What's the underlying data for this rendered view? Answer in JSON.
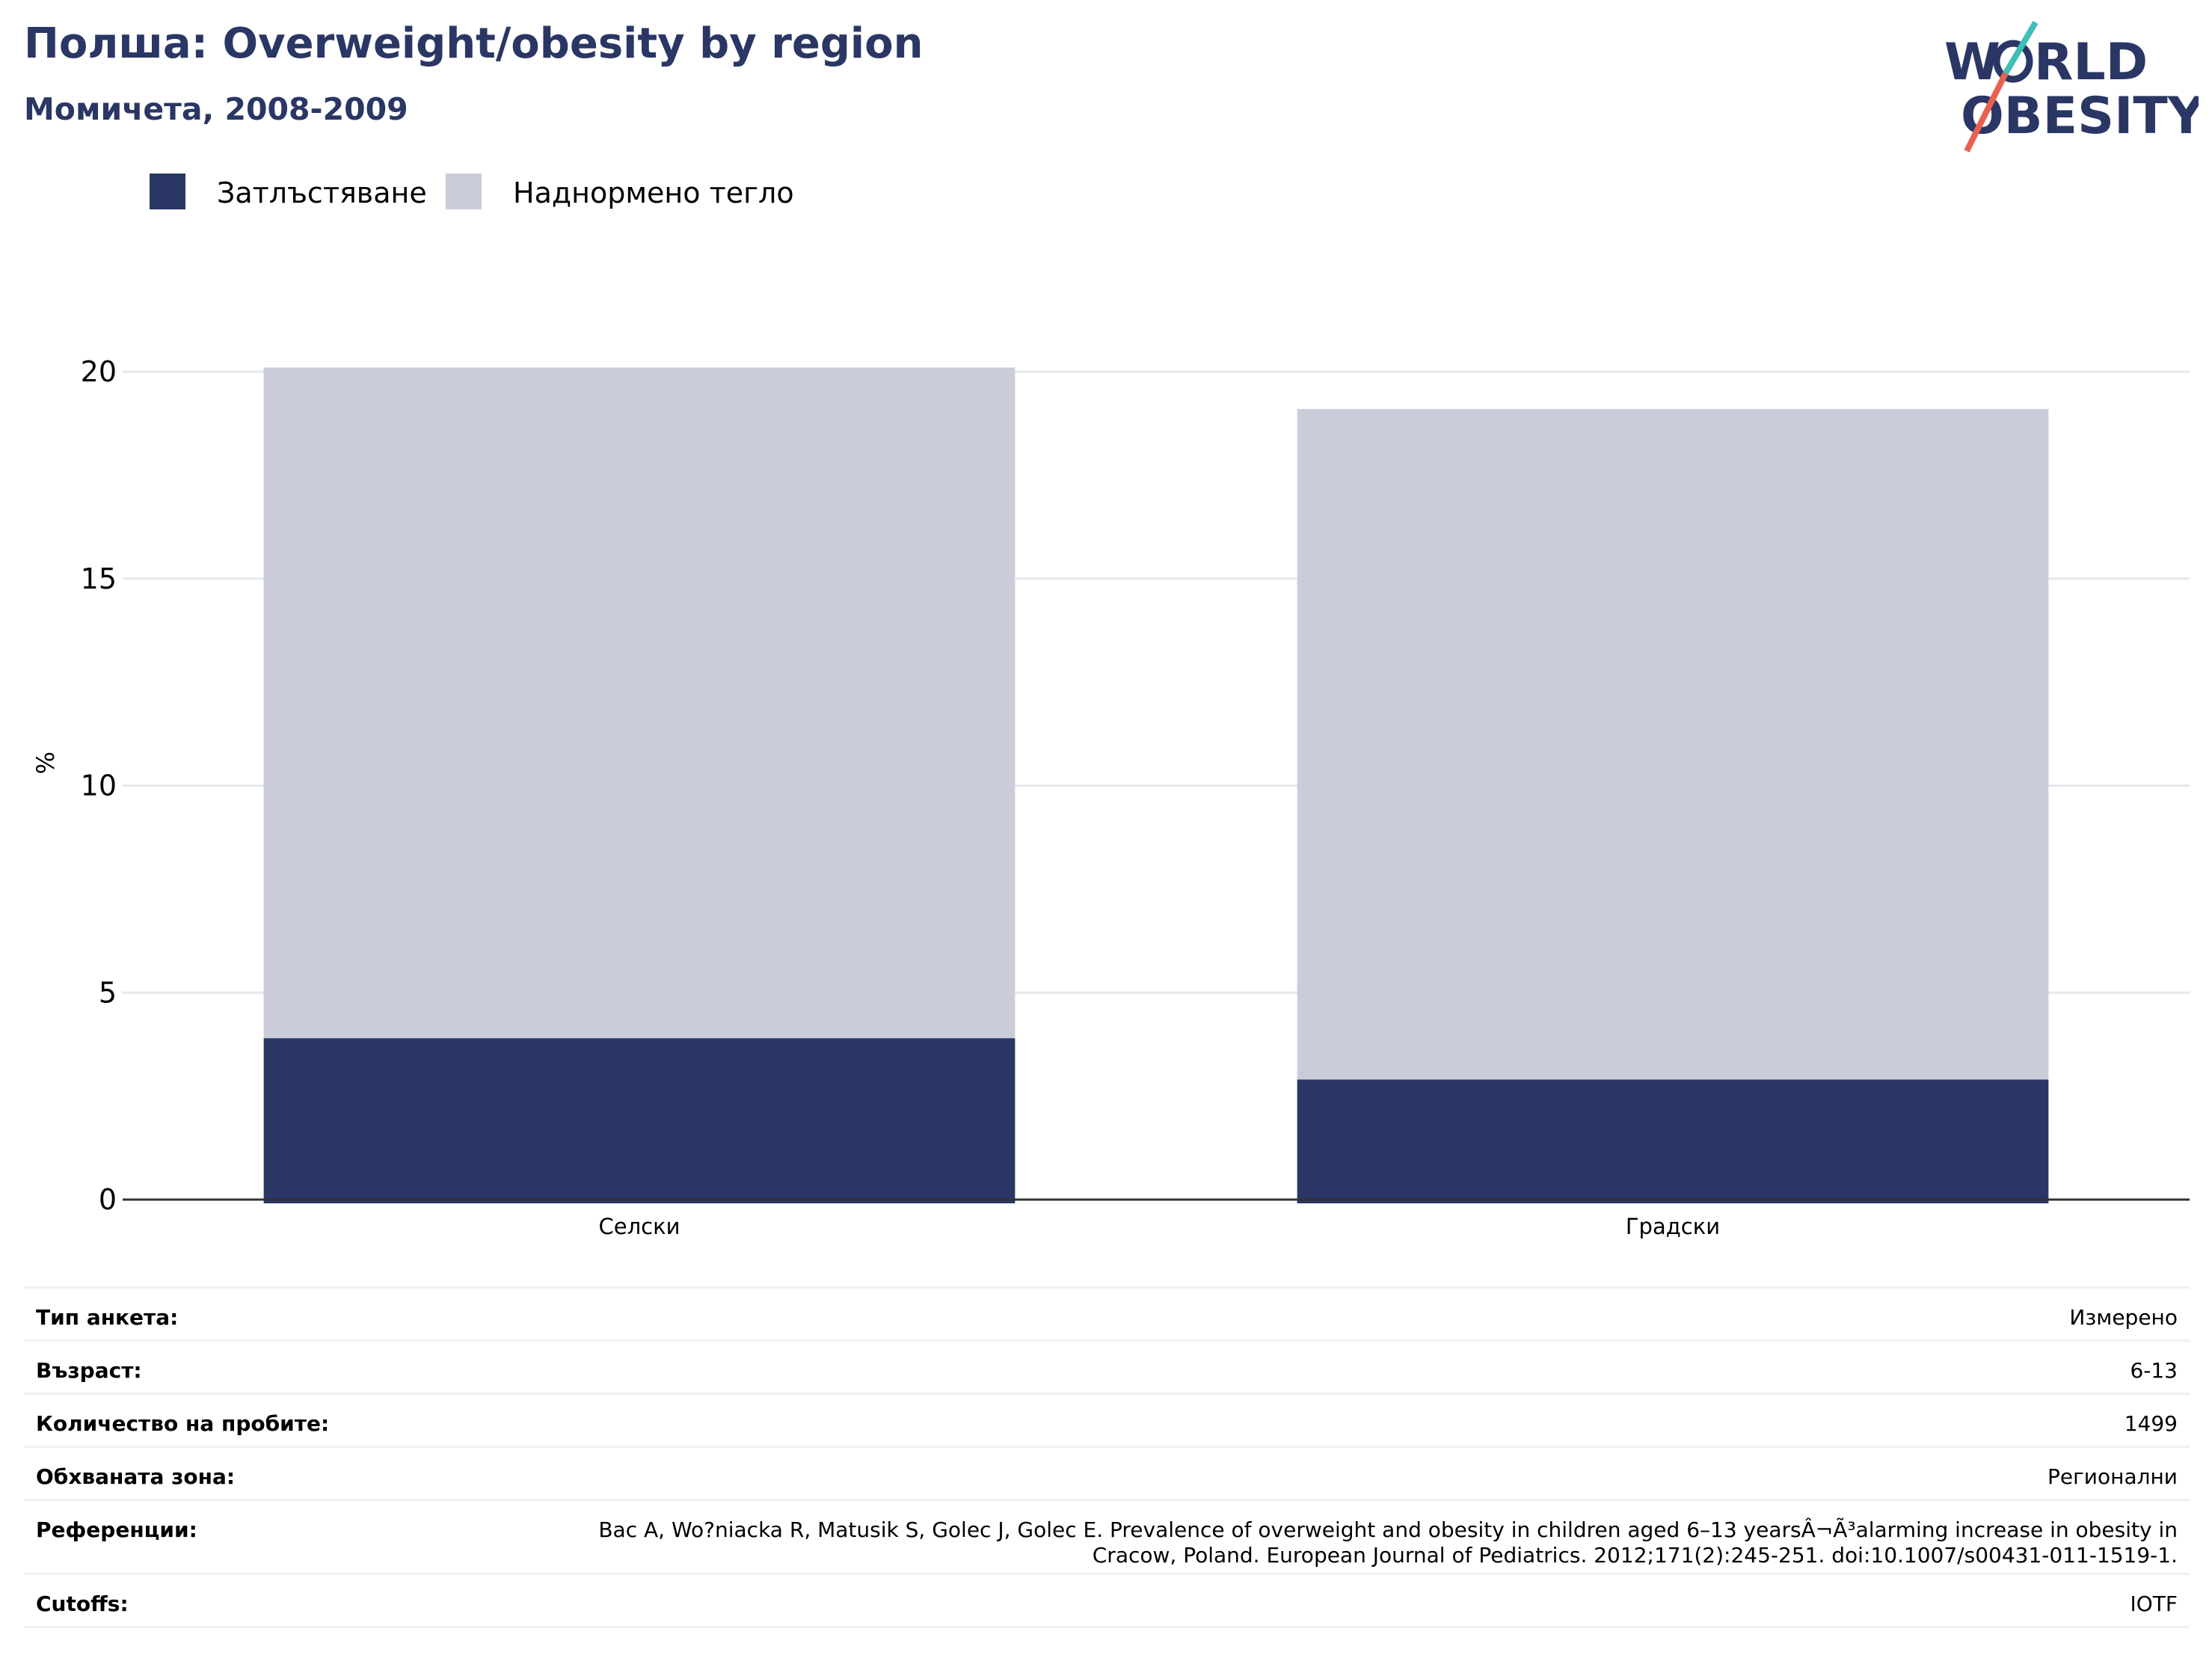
{
  "header": {
    "title": "Полша: Overweight/obesity by region",
    "subtitle": "Момичета, 2008-2009"
  },
  "logo": {
    "text_line1": "W",
    "text_line1b": "RLD",
    "text_line2": "OBESITY",
    "colors": {
      "navy": "#2a3765",
      "teal": "#3fbfb8",
      "coral": "#e8604f"
    }
  },
  "colors": {
    "obesity": "#2a3765",
    "overweight": "#cacdd9",
    "grid": "#e6e8ee",
    "axis": "#333333"
  },
  "chart_data": {
    "type": "bar",
    "stacked": true,
    "categories": [
      "Селски",
      "Градски"
    ],
    "series": [
      {
        "name": "Затлъстяване",
        "values": [
          3.9,
          2.9
        ]
      },
      {
        "name": "Наднормено тегло",
        "values": [
          16.2,
          16.2
        ]
      }
    ],
    "ylabel": "%",
    "ylim": [
      0,
      20
    ],
    "yticks": [
      0,
      5,
      10,
      15,
      20
    ],
    "grid": true,
    "legend": "top-left"
  },
  "footer": {
    "rows": [
      {
        "key": "Тип анкета:",
        "value": "Измерено"
      },
      {
        "key": "Възраст:",
        "value": "6-13"
      },
      {
        "key": "Количество на пробите:",
        "value": "1499"
      },
      {
        "key": "Обхваната зона:",
        "value": "Регионални"
      },
      {
        "key": "Референции:",
        "value": "Bac A, Wo?niacka R, Matusik S, Golec J, Golec E. Prevalence of overweight and obesity in children aged 6–13 yearsÂ¬Ã³alarming increase in obesity in Cracow, Poland. European Journal of Pediatrics. 2012;171(2):245-251. doi:10.1007/s00431-011-1519-1."
      },
      {
        "key": "Cutoffs:",
        "value": "IOTF"
      }
    ]
  }
}
